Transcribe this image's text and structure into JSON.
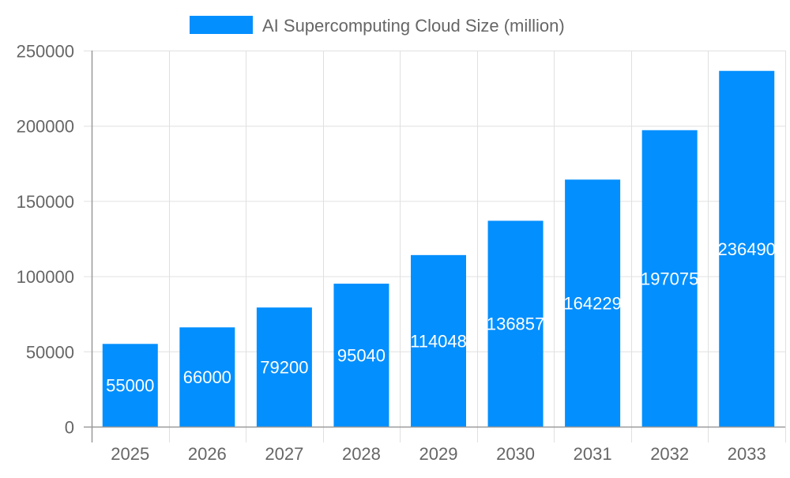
{
  "chart_data": {
    "type": "bar",
    "categories": [
      "2025",
      "2026",
      "2027",
      "2028",
      "2029",
      "2030",
      "2031",
      "2032",
      "2033"
    ],
    "series": [
      {
        "name": "AI Supercomputing Cloud Size (million)",
        "values": [
          55000,
          66000,
          79200,
          95040,
          114048,
          136857,
          164229,
          197075,
          236490
        ]
      }
    ],
    "ylim": [
      0,
      250000
    ],
    "yticks": [
      "0",
      "50000",
      "100000",
      "150000",
      "200000",
      "250000"
    ],
    "grid": true,
    "legend": "top-center",
    "data_labels": true,
    "colors": {
      "bar": "#038ffe",
      "text": "#666666",
      "grid": "#e0e0e0",
      "label": "#ffffff"
    }
  }
}
